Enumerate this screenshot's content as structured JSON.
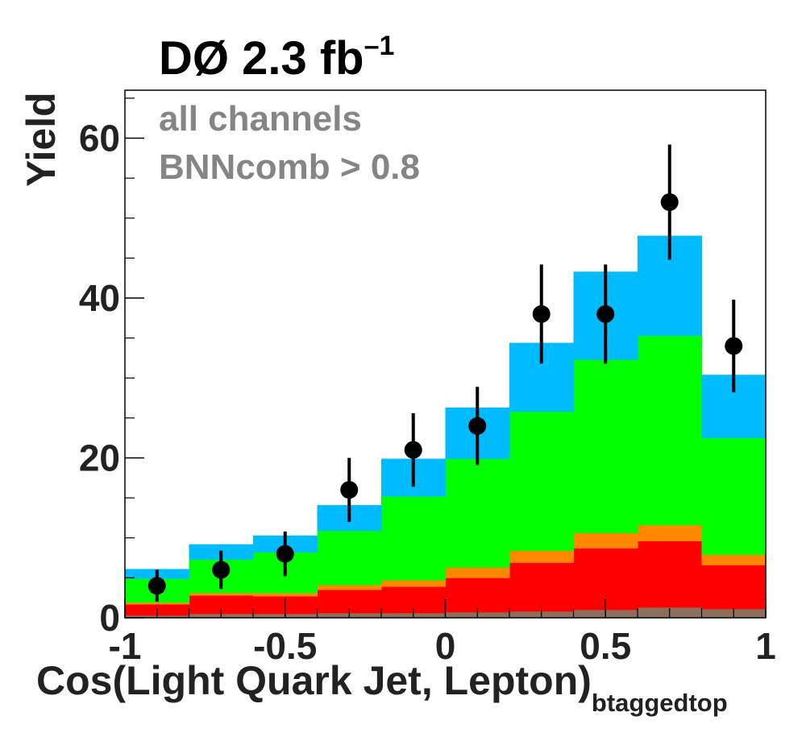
{
  "header": {
    "title_main": "DØ  2.3 fb",
    "title_sup": "–1"
  },
  "annotations": {
    "line1": "all channels",
    "line2": "BNNcomb > 0.8"
  },
  "axes": {
    "ylabel": "Yield",
    "xlabel_main": "Cos(Light Quark Jet, Lepton)",
    "xlabel_sub": "btaggedtop"
  },
  "colors": {
    "sky": "#00bbff",
    "green": "#00ff00",
    "orange": "#ff8800",
    "red": "#ff0000",
    "brown": "#8c6e5c",
    "data": "#000000"
  },
  "chart_data": {
    "type": "bar",
    "style": "stacked-histogram-with-data-points",
    "bin_edges": [
      -1,
      -0.8,
      -0.6,
      -0.4,
      -0.2,
      0,
      0.2,
      0.4,
      0.6,
      0.8,
      1
    ],
    "xlim": [
      -1,
      1
    ],
    "ylim": [
      0,
      66
    ],
    "x_ticks": [
      {
        "value": -1,
        "label": "-1"
      },
      {
        "value": -0.5,
        "label": "-0.5"
      },
      {
        "value": 0,
        "label": "0"
      },
      {
        "value": 0.5,
        "label": "0.5"
      },
      {
        "value": 1,
        "label": "1"
      }
    ],
    "y_ticks": [
      {
        "value": 0,
        "label": "0"
      },
      {
        "value": 20,
        "label": "20"
      },
      {
        "value": 40,
        "label": "40"
      },
      {
        "value": 60,
        "label": "60"
      }
    ],
    "stack": [
      {
        "color": "brown",
        "values": [
          0.3,
          0.5,
          0.5,
          0.6,
          0.6,
          0.7,
          0.8,
          1.0,
          1.3,
          1.1
        ]
      },
      {
        "color": "red",
        "values": [
          1.4,
          2.3,
          2.2,
          2.9,
          3.3,
          4.3,
          6.1,
          7.7,
          8.3,
          5.5
        ]
      },
      {
        "color": "orange",
        "values": [
          0.2,
          0.3,
          0.4,
          0.6,
          0.8,
          1.3,
          1.5,
          1.9,
          2.0,
          1.3
        ]
      },
      {
        "color": "green",
        "values": [
          3.0,
          4.2,
          5.1,
          6.8,
          10.5,
          13.6,
          17.4,
          21.7,
          23.7,
          14.6
        ]
      },
      {
        "color": "sky",
        "values": [
          1.2,
          1.9,
          2.1,
          3.2,
          4.7,
          6.4,
          8.6,
          11.0,
          12.5,
          7.9
        ]
      }
    ],
    "data_points": {
      "x": [
        -0.9,
        -0.7,
        -0.5,
        -0.3,
        -0.1,
        0.1,
        0.3,
        0.5,
        0.7,
        0.9
      ],
      "y": [
        4,
        6,
        8,
        16,
        21,
        24,
        38,
        38,
        52,
        34
      ],
      "err_low": [
        2.0,
        2.4,
        2.8,
        4.0,
        4.6,
        4.9,
        6.2,
        6.2,
        7.2,
        5.8
      ],
      "err_high": [
        2.0,
        2.4,
        2.8,
        4.0,
        4.6,
        4.9,
        6.2,
        6.2,
        7.2,
        5.8
      ]
    },
    "grid": false
  }
}
